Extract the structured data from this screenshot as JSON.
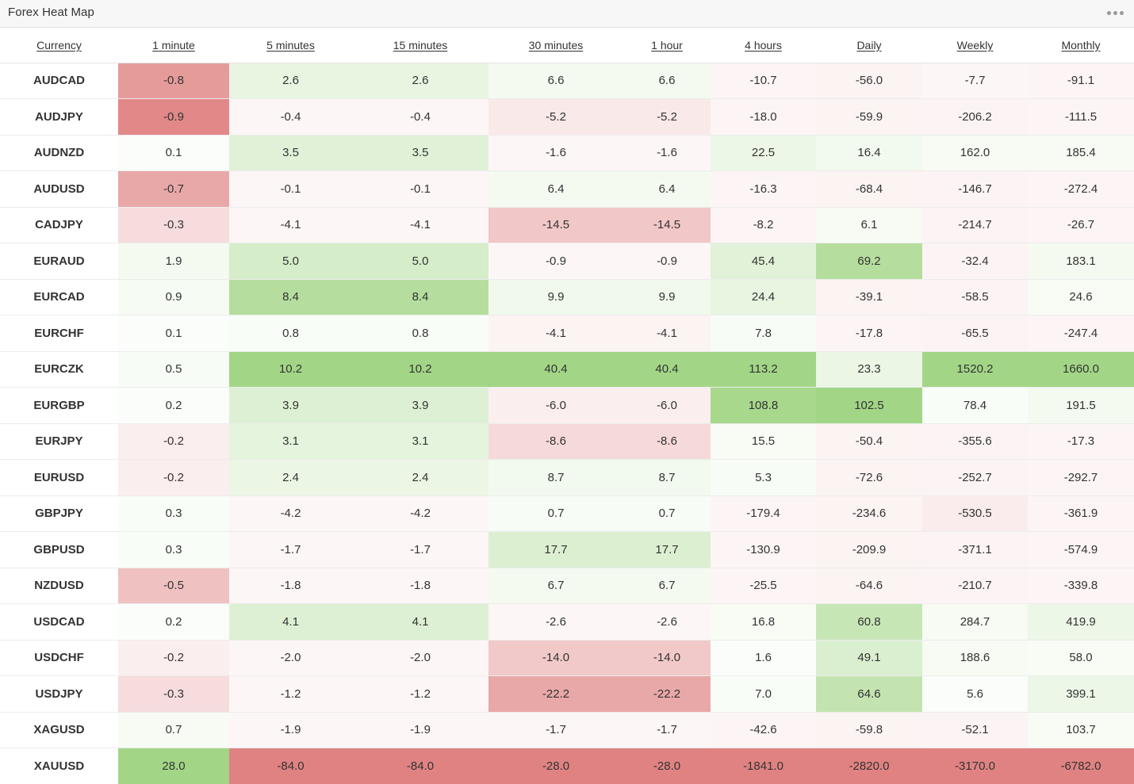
{
  "widget": {
    "title": "Forex Heat Map",
    "menu_icon": "more-horizontal-icon"
  },
  "colors": {
    "positive": [
      162,
      214,
      134
    ],
    "negative": [
      224,
      130,
      130
    ],
    "neutral": [
      255,
      255,
      255
    ]
  },
  "columns": [
    "Currency",
    "1 minute",
    "5 minutes",
    "15 minutes",
    "30 minutes",
    "1 hour",
    "4 hours",
    "Daily",
    "Weekly",
    "Monthly"
  ],
  "rows": [
    {
      "pair": "AUDCAD",
      "values": [
        "-0.8",
        "2.6",
        "2.6",
        "6.6",
        "6.6",
        "-10.7",
        "-56.0",
        "-7.7",
        "-91.1"
      ],
      "shade": [
        -0.8,
        0.25,
        0.25,
        0.12,
        0.12,
        -0.08,
        -0.1,
        -0.07,
        -0.08
      ]
    },
    {
      "pair": "AUDJPY",
      "values": [
        "-0.9",
        "-0.4",
        "-0.4",
        "-5.2",
        "-5.2",
        "-18.0",
        "-59.9",
        "-206.2",
        "-111.5"
      ],
      "shade": [
        -0.95,
        -0.07,
        -0.07,
        -0.18,
        -0.18,
        -0.08,
        -0.1,
        -0.09,
        -0.08
      ]
    },
    {
      "pair": "AUDNZD",
      "values": [
        "0.1",
        "3.5",
        "3.5",
        "-1.6",
        "-1.6",
        "22.5",
        "16.4",
        "162.0",
        "185.4"
      ],
      "shade": [
        0.04,
        0.33,
        0.33,
        -0.07,
        -0.07,
        0.2,
        0.14,
        0.09,
        0.09
      ]
    },
    {
      "pair": "AUDUSD",
      "values": [
        "-0.7",
        "-0.1",
        "-0.1",
        "6.4",
        "6.4",
        "-16.3",
        "-68.4",
        "-146.7",
        "-272.4"
      ],
      "shade": [
        -0.7,
        -0.07,
        -0.07,
        0.12,
        0.12,
        -0.08,
        -0.1,
        -0.09,
        -0.08
      ]
    },
    {
      "pair": "CADJPY",
      "values": [
        "-0.3",
        "-4.1",
        "-4.1",
        "-14.5",
        "-14.5",
        "-8.2",
        "6.1",
        "-214.7",
        "-26.7"
      ],
      "shade": [
        -0.28,
        -0.07,
        -0.07,
        -0.45,
        -0.45,
        -0.08,
        0.09,
        -0.09,
        -0.08
      ]
    },
    {
      "pair": "EURAUD",
      "values": [
        "1.9",
        "5.0",
        "5.0",
        "-0.9",
        "-0.9",
        "45.4",
        "69.2",
        "-32.4",
        "183.1"
      ],
      "shade": [
        0.12,
        0.45,
        0.45,
        -0.07,
        -0.07,
        0.32,
        0.8,
        -0.09,
        0.12
      ]
    },
    {
      "pair": "EURCAD",
      "values": [
        "0.9",
        "8.4",
        "8.4",
        "9.9",
        "9.9",
        "24.4",
        "-39.1",
        "-58.5",
        "24.6"
      ],
      "shade": [
        0.1,
        0.8,
        0.8,
        0.15,
        0.15,
        0.25,
        -0.1,
        -0.09,
        0.08
      ]
    },
    {
      "pair": "EURCHF",
      "values": [
        "0.1",
        "0.8",
        "0.8",
        "-4.1",
        "-4.1",
        "7.8",
        "-17.8",
        "-65.5",
        "-247.4"
      ],
      "shade": [
        0.04,
        0.06,
        0.06,
        -0.1,
        -0.1,
        0.07,
        -0.08,
        -0.09,
        -0.08
      ]
    },
    {
      "pair": "EURCZK",
      "values": [
        "0.5",
        "10.2",
        "10.2",
        "40.4",
        "40.4",
        "113.2",
        "23.3",
        "1520.2",
        "1660.0"
      ],
      "shade": [
        0.07,
        1.0,
        1.0,
        1.0,
        1.0,
        1.0,
        0.22,
        1.0,
        1.0
      ]
    },
    {
      "pair": "EURGBP",
      "values": [
        "0.2",
        "3.9",
        "3.9",
        "-6.0",
        "-6.0",
        "108.8",
        "102.5",
        "78.4",
        "191.5"
      ],
      "shade": [
        0.05,
        0.36,
        0.36,
        -0.14,
        -0.14,
        0.95,
        1.0,
        0.06,
        0.12
      ]
    },
    {
      "pair": "EURJPY",
      "values": [
        "-0.2",
        "3.1",
        "3.1",
        "-8.6",
        "-8.6",
        "15.5",
        "-50.4",
        "-355.6",
        "-17.3"
      ],
      "shade": [
        -0.14,
        0.28,
        0.28,
        -0.3,
        -0.3,
        0.08,
        -0.1,
        -0.09,
        -0.08
      ]
    },
    {
      "pair": "EURUSD",
      "values": [
        "-0.2",
        "2.4",
        "2.4",
        "8.7",
        "8.7",
        "5.3",
        "-72.6",
        "-252.7",
        "-292.7"
      ],
      "shade": [
        -0.14,
        0.22,
        0.22,
        0.14,
        0.14,
        0.07,
        -0.1,
        -0.09,
        -0.08
      ]
    },
    {
      "pair": "GBPJPY",
      "values": [
        "0.3",
        "-4.2",
        "-4.2",
        "0.7",
        "0.7",
        "-179.4",
        "-234.6",
        "-530.5",
        "-361.9"
      ],
      "shade": [
        0.06,
        -0.07,
        -0.07,
        0.07,
        0.07,
        -0.08,
        -0.1,
        -0.15,
        -0.08
      ]
    },
    {
      "pair": "GBPUSD",
      "values": [
        "0.3",
        "-1.7",
        "-1.7",
        "17.7",
        "17.7",
        "-130.9",
        "-209.9",
        "-371.1",
        "-574.9"
      ],
      "shade": [
        0.06,
        -0.07,
        -0.07,
        0.38,
        0.38,
        -0.08,
        -0.1,
        -0.09,
        -0.08
      ]
    },
    {
      "pair": "NZDUSD",
      "values": [
        "-0.5",
        "-1.8",
        "-1.8",
        "6.7",
        "6.7",
        "-25.5",
        "-64.6",
        "-210.7",
        "-339.8"
      ],
      "shade": [
        -0.5,
        -0.07,
        -0.07,
        0.12,
        0.12,
        -0.08,
        -0.1,
        -0.09,
        -0.08
      ]
    },
    {
      "pair": "USDCAD",
      "values": [
        "0.2",
        "4.1",
        "4.1",
        "-2.6",
        "-2.6",
        "16.8",
        "60.8",
        "284.7",
        "419.9"
      ],
      "shade": [
        0.05,
        0.36,
        0.36,
        -0.07,
        -0.07,
        0.08,
        0.6,
        0.09,
        0.2
      ]
    },
    {
      "pair": "USDCHF",
      "values": [
        "-0.2",
        "-2.0",
        "-2.0",
        "-14.0",
        "-14.0",
        "1.6",
        "49.1",
        "188.6",
        "58.0"
      ],
      "shade": [
        -0.14,
        -0.07,
        -0.07,
        -0.43,
        -0.43,
        0.05,
        0.4,
        0.09,
        0.08
      ]
    },
    {
      "pair": "USDJPY",
      "values": [
        "-0.3",
        "-1.2",
        "-1.2",
        "-22.2",
        "-22.2",
        "7.0",
        "64.6",
        "5.6",
        "399.1"
      ],
      "shade": [
        -0.28,
        -0.07,
        -0.07,
        -0.7,
        -0.7,
        0.06,
        0.65,
        0.05,
        0.2
      ]
    },
    {
      "pair": "XAGUSD",
      "values": [
        "0.7",
        "-1.9",
        "-1.9",
        "-1.7",
        "-1.7",
        "-42.6",
        "-59.8",
        "-52.1",
        "103.7"
      ],
      "shade": [
        0.09,
        -0.07,
        -0.07,
        -0.07,
        -0.07,
        -0.08,
        -0.1,
        -0.09,
        0.08
      ]
    },
    {
      "pair": "XAUUSD",
      "values": [
        "28.0",
        "-84.0",
        "-84.0",
        "-28.0",
        "-28.0",
        "-1841.0",
        "-2820.0",
        "-3170.0",
        "-6782.0"
      ],
      "shade": [
        1.0,
        -1.0,
        -1.0,
        -1.0,
        -1.0,
        -1.0,
        -1.0,
        -1.0,
        -1.0
      ]
    }
  ]
}
